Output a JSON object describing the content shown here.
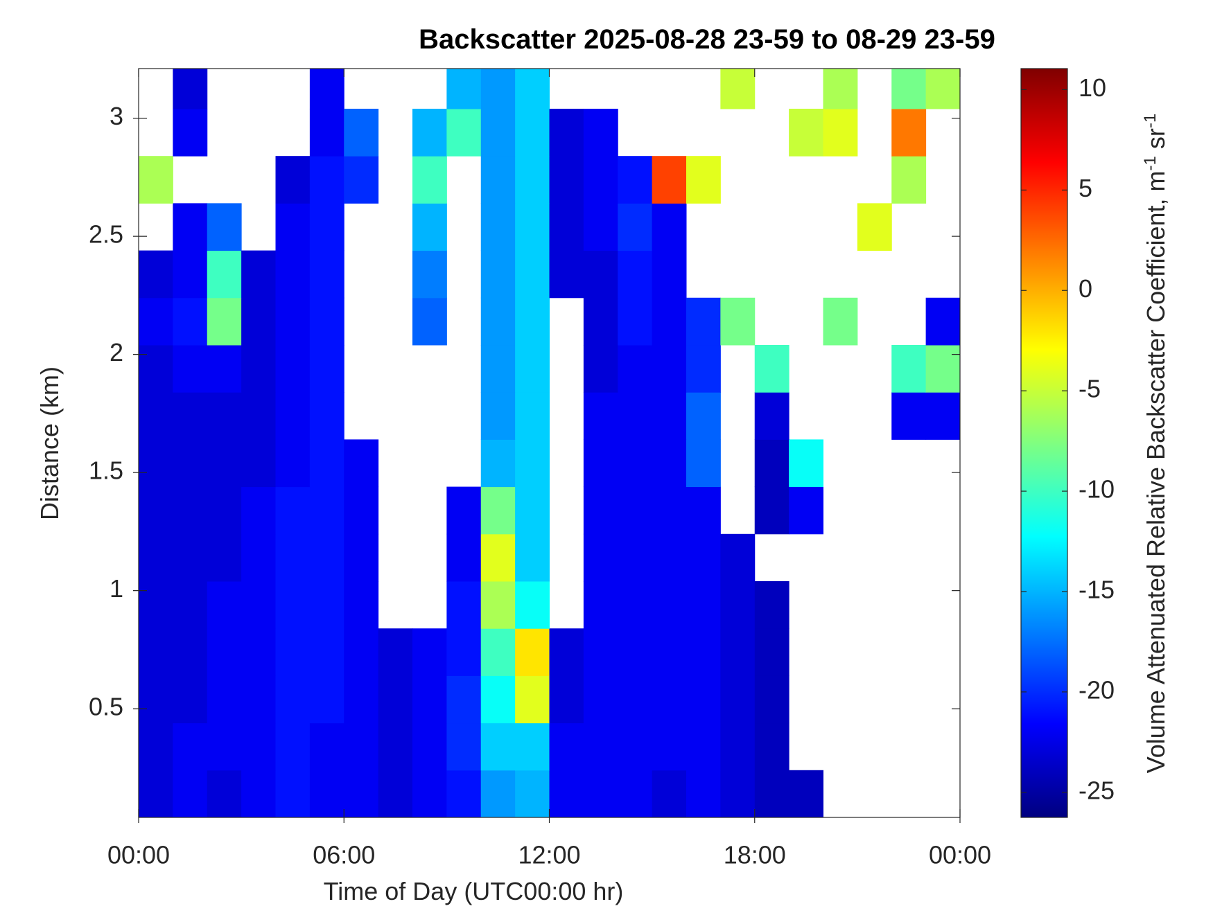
{
  "chart_data": {
    "type": "heatmap",
    "title": "Backscatter 2025-08-28 23-59 to 08-29 23-59",
    "x_label": "Time of Day (UTC00:00 hr)",
    "y_label": "Distance (km)",
    "colorbar_label": [
      "Volume Attenuated Relative Backscatter Coefficient, m",
      "-1",
      " sr",
      "-1"
    ],
    "colormap": "jet",
    "xlim": [
      0,
      24
    ],
    "xticks": [
      {
        "value": 0,
        "label": "00:00"
      },
      {
        "value": 6,
        "label": "06:00"
      },
      {
        "value": 12,
        "label": "12:00"
      },
      {
        "value": 18,
        "label": "18:00"
      },
      {
        "value": 24,
        "label": "00:00"
      }
    ],
    "ylim": [
      0.04,
      3.21
    ],
    "yticks": [
      0.5,
      1,
      1.5,
      2,
      2.5,
      3
    ],
    "clim": [
      -26.25,
      11.05
    ],
    "cticks": [
      -25,
      -20,
      -15,
      -10,
      -5,
      0,
      5,
      10
    ],
    "x": [
      0.5,
      1.5,
      2.5,
      3.5,
      4.5,
      5.5,
      6.5,
      7.5,
      8.5,
      9.5,
      10.5,
      11.5,
      12.5,
      13.5,
      14.5,
      15.5,
      16.5,
      17.5,
      18.5,
      19.5,
      20.5,
      21.5,
      22.5,
      23.5
    ],
    "y": [
      0.14,
      0.34,
      0.54,
      0.74,
      0.94,
      1.14,
      1.34,
      1.54,
      1.74,
      1.94,
      2.14,
      2.34,
      2.54,
      2.74,
      2.94,
      3.14
    ],
    "z": [
      [
        -23,
        -22,
        -23,
        -22,
        -21,
        -22,
        -22,
        -23,
        -22,
        -21,
        -16,
        -15,
        -22,
        -22,
        -22,
        -23,
        -22,
        -23,
        -24,
        -24,
        null,
        null,
        null,
        null
      ],
      [
        -23,
        -22,
        -22,
        -22,
        -21,
        -22,
        -22,
        -23,
        -22,
        -20,
        -14,
        -14,
        -22,
        -22,
        -22,
        -22,
        -22,
        -23,
        -24,
        null,
        null,
        null,
        null,
        null
      ],
      [
        -23,
        -23,
        -22,
        -22,
        -21,
        -21,
        -22,
        -23,
        -22,
        -20,
        -12,
        -4,
        -23,
        -22,
        -22,
        -22,
        -22,
        -23,
        -24,
        null,
        null,
        null,
        null,
        null
      ],
      [
        -23,
        -23,
        -22,
        -22,
        -21,
        -21,
        -22,
        -23,
        -22,
        -21,
        -10,
        -2,
        -23,
        -22,
        -22,
        -22,
        -22,
        -23,
        -24,
        null,
        null,
        null,
        null,
        null
      ],
      [
        -23,
        -23,
        -22,
        -22,
        -21,
        -21,
        -22,
        null,
        null,
        -21,
        -6,
        -12,
        null,
        -22,
        -22,
        -22,
        -22,
        -23,
        -24,
        null,
        null,
        null,
        null,
        null
      ],
      [
        -23,
        -23,
        -23,
        -22,
        -21,
        -21,
        -22,
        null,
        null,
        -22,
        -4,
        -14,
        null,
        -22,
        -22,
        -22,
        -22,
        -23,
        null,
        null,
        null,
        null,
        null,
        null
      ],
      [
        -23,
        -23,
        -23,
        -22,
        -21,
        -21,
        -22,
        null,
        null,
        -22,
        -8,
        -14,
        null,
        -22,
        -22,
        -22,
        -22,
        null,
        -24,
        -22,
        null,
        null,
        null,
        null
      ],
      [
        -23,
        -23,
        -23,
        -23,
        -22,
        -21,
        -22,
        null,
        null,
        null,
        -15,
        -14,
        null,
        -22,
        -22,
        -22,
        -18,
        null,
        -24,
        -12,
        null,
        null,
        null,
        null
      ],
      [
        -23,
        -23,
        -23,
        -23,
        -22,
        -21,
        null,
        null,
        null,
        null,
        -16,
        -14,
        null,
        -22,
        -22,
        -22,
        -18,
        null,
        -23,
        null,
        null,
        null,
        -22,
        -22
      ],
      [
        -23,
        -22,
        -22,
        -23,
        -22,
        -21,
        null,
        null,
        null,
        null,
        -16,
        -14,
        null,
        -23,
        -22,
        -22,
        -20,
        null,
        -10,
        null,
        null,
        null,
        -10,
        -8
      ],
      [
        -22,
        -21,
        -8,
        -23,
        -22,
        -21,
        null,
        null,
        -18,
        null,
        -16,
        -14,
        null,
        -23,
        -21,
        -22,
        -20,
        -8,
        null,
        null,
        -8,
        null,
        null,
        -22
      ],
      [
        -23,
        -22,
        -10,
        -23,
        -22,
        -21,
        null,
        null,
        -17,
        null,
        -16,
        -14,
        -23,
        -23,
        -21,
        -22,
        null,
        null,
        null,
        null,
        null,
        null,
        null,
        null
      ],
      [
        null,
        -22,
        -18,
        null,
        -22,
        -21,
        null,
        null,
        -15,
        null,
        -16,
        -14,
        -23,
        -22,
        -20,
        -22,
        null,
        null,
        null,
        null,
        null,
        -4,
        null,
        null
      ],
      [
        -6,
        null,
        null,
        null,
        -23,
        -21,
        -20,
        null,
        -10,
        null,
        -16,
        -14,
        -23,
        -22,
        -21,
        4,
        -4,
        null,
        null,
        null,
        null,
        null,
        -6,
        null
      ],
      [
        null,
        -22,
        null,
        null,
        null,
        -22,
        -18,
        null,
        -15,
        -10,
        -16,
        -14,
        -23,
        -22,
        null,
        null,
        null,
        null,
        null,
        -5,
        -4,
        null,
        2,
        null
      ],
      [
        null,
        -23,
        null,
        null,
        null,
        -22,
        null,
        null,
        null,
        -15,
        -16,
        -14,
        null,
        null,
        null,
        null,
        null,
        -5,
        null,
        null,
        -6,
        null,
        -8,
        -6
      ]
    ]
  }
}
